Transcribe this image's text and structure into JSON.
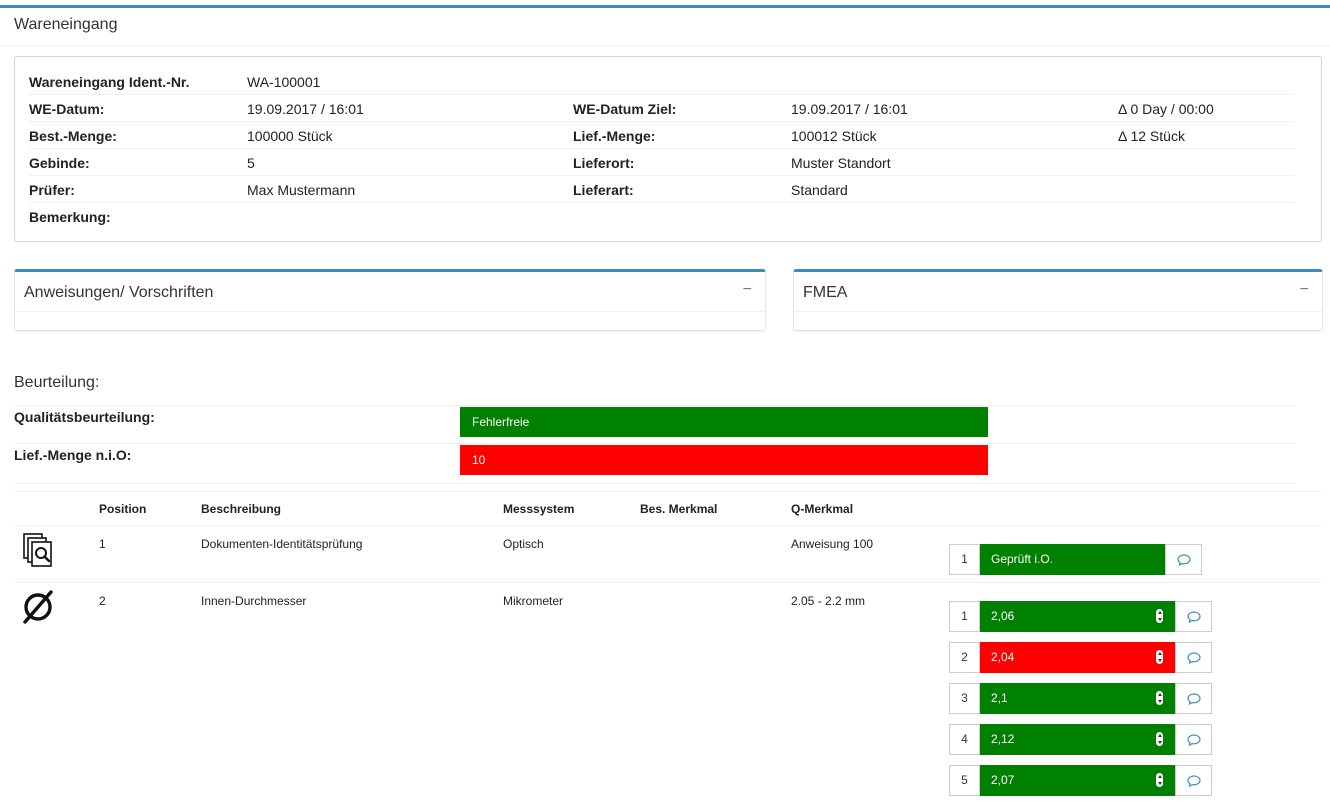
{
  "page": {
    "title": "Wareneingang"
  },
  "info": {
    "rows": [
      {
        "l1": "Wareneingang Ident.-Nr.",
        "v1": "WA-100001",
        "l2": "",
        "v2": "",
        "extra": ""
      },
      {
        "l1": "WE-Datum:",
        "v1": "19.09.2017 / 16:01",
        "l2": "WE-Datum Ziel:",
        "v2": "19.09.2017 / 16:01",
        "extra": "Δ 0 Day / 00:00"
      },
      {
        "l1": "Best.-Menge:",
        "v1": "100000 Stück",
        "l2": "Lief.-Menge:",
        "v2": "100012 Stück",
        "extra": "Δ 12 Stück"
      },
      {
        "l1": "Gebinde:",
        "v1": "5",
        "l2": "Lieferort:",
        "v2": "Muster Standort",
        "extra": ""
      },
      {
        "l1": "Prüfer:",
        "v1": "Max Mustermann",
        "l2": "Lieferart:",
        "v2": "Standard",
        "extra": ""
      },
      {
        "l1": "Bemerkung:",
        "v1": "",
        "l2": "",
        "v2": "",
        "extra": ""
      }
    ]
  },
  "panels": {
    "instructions": {
      "title": "Anweisungen/ Vorschriften",
      "collapse": "−"
    },
    "fmea": {
      "title": "FMEA",
      "collapse": "−"
    }
  },
  "assessment": {
    "title": "Beurteilung:",
    "quality_label": "Qualitätsbeurteilung:",
    "quality_value": "Fehlerfreie",
    "quality_color": "#008000",
    "nio_label": "Lief.-Menge n.i.O:",
    "nio_value": "10",
    "nio_color": "#ff0000"
  },
  "table": {
    "headers": {
      "position": "Position",
      "description": "Beschreibung",
      "system": "Messsystem",
      "special": "Bes. Merkmal",
      "q": "Q-Merkmal"
    },
    "rows": [
      {
        "icon": "document-search-icon",
        "position": "1",
        "description": "Dokumenten-Identitätsprüfung",
        "system": "Optisch",
        "special": "",
        "q": "Anweisung 100",
        "measurements": [
          {
            "n": "1",
            "value": "Geprüft i.O.",
            "status": "ok"
          }
        ]
      },
      {
        "icon": "diameter-icon",
        "position": "2",
        "description": "Innen-Durchmesser",
        "system": "Mikrometer",
        "special": "",
        "q": "2.05 - 2.2 mm",
        "measurements": [
          {
            "n": "1",
            "value": "2,06",
            "status": "ok"
          },
          {
            "n": "2",
            "value": "2,04",
            "status": "nok"
          },
          {
            "n": "3",
            "value": "2,1",
            "status": "ok"
          },
          {
            "n": "4",
            "value": "2,12",
            "status": "ok"
          },
          {
            "n": "5",
            "value": "2,07",
            "status": "ok"
          }
        ]
      }
    ]
  }
}
